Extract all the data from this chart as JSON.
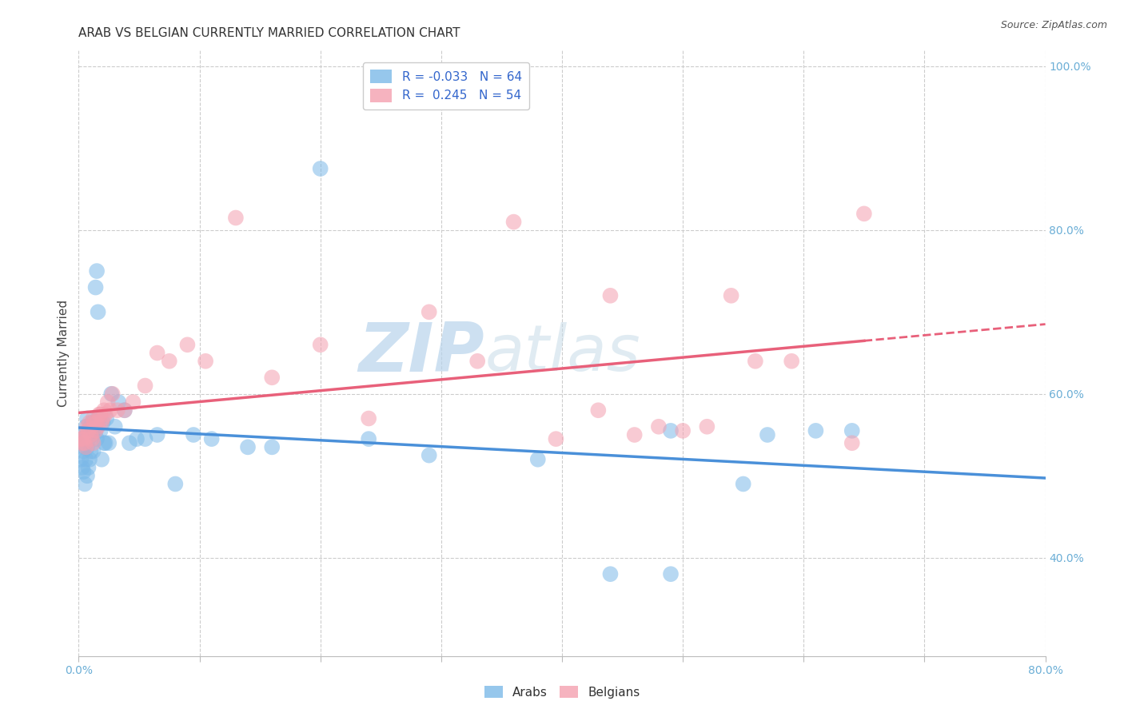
{
  "title": "ARAB VS BELGIAN CURRENTLY MARRIED CORRELATION CHART",
  "source": "Source: ZipAtlas.com",
  "ylabel": "Currently Married",
  "xlim": [
    0.0,
    0.8
  ],
  "ylim": [
    0.28,
    1.02
  ],
  "xtick_positions": [
    0.0,
    0.1,
    0.2,
    0.3,
    0.4,
    0.5,
    0.6,
    0.7,
    0.8
  ],
  "xticklabels": [
    "0.0%",
    "",
    "",
    "",
    "",
    "",
    "",
    "",
    "80.0%"
  ],
  "ytick_positions": [
    0.4,
    0.6,
    0.8,
    1.0
  ],
  "yticklabels": [
    "40.0%",
    "60.0%",
    "80.0%",
    "100.0%"
  ],
  "arab_color": "#7cb9e8",
  "belgian_color": "#f4a0b0",
  "arab_line_color": "#4a90d9",
  "belgian_line_color": "#e8607a",
  "arab_R": -0.033,
  "arab_N": 64,
  "belgian_R": 0.245,
  "belgian_N": 54,
  "watermark": "ZIPatlas",
  "background_color": "#ffffff",
  "grid_color": "#cccccc",
  "axis_color": "#6baed6",
  "arab_points_x": [
    0.001,
    0.002,
    0.002,
    0.003,
    0.003,
    0.004,
    0.004,
    0.005,
    0.005,
    0.006,
    0.006,
    0.007,
    0.007,
    0.007,
    0.008,
    0.008,
    0.009,
    0.009,
    0.01,
    0.01,
    0.01,
    0.011,
    0.011,
    0.012,
    0.012,
    0.013,
    0.014,
    0.014,
    0.015,
    0.015,
    0.016,
    0.016,
    0.017,
    0.018,
    0.019,
    0.02,
    0.021,
    0.022,
    0.023,
    0.025,
    0.027,
    0.03,
    0.033,
    0.038,
    0.042,
    0.048,
    0.055,
    0.065,
    0.08,
    0.095,
    0.11,
    0.14,
    0.16,
    0.2,
    0.24,
    0.29,
    0.38,
    0.44,
    0.49,
    0.49,
    0.55,
    0.57,
    0.61,
    0.64
  ],
  "arab_points_y": [
    0.54,
    0.545,
    0.52,
    0.55,
    0.51,
    0.53,
    0.505,
    0.535,
    0.49,
    0.52,
    0.56,
    0.5,
    0.57,
    0.535,
    0.545,
    0.51,
    0.555,
    0.52,
    0.545,
    0.56,
    0.53,
    0.55,
    0.565,
    0.555,
    0.53,
    0.56,
    0.555,
    0.73,
    0.545,
    0.75,
    0.57,
    0.7,
    0.57,
    0.555,
    0.52,
    0.565,
    0.54,
    0.54,
    0.57,
    0.54,
    0.6,
    0.56,
    0.59,
    0.58,
    0.54,
    0.545,
    0.545,
    0.55,
    0.49,
    0.55,
    0.545,
    0.535,
    0.535,
    0.875,
    0.545,
    0.525,
    0.52,
    0.38,
    0.555,
    0.38,
    0.49,
    0.55,
    0.555,
    0.555
  ],
  "belgian_points_x": [
    0.001,
    0.002,
    0.003,
    0.004,
    0.005,
    0.006,
    0.007,
    0.007,
    0.008,
    0.009,
    0.01,
    0.011,
    0.012,
    0.012,
    0.013,
    0.014,
    0.015,
    0.016,
    0.017,
    0.018,
    0.019,
    0.02,
    0.021,
    0.022,
    0.024,
    0.026,
    0.028,
    0.032,
    0.038,
    0.045,
    0.055,
    0.065,
    0.075,
    0.09,
    0.105,
    0.13,
    0.16,
    0.2,
    0.24,
    0.29,
    0.33,
    0.36,
    0.395,
    0.43,
    0.44,
    0.46,
    0.48,
    0.5,
    0.52,
    0.54,
    0.56,
    0.59,
    0.64,
    0.65
  ],
  "belgian_points_y": [
    0.545,
    0.545,
    0.54,
    0.545,
    0.54,
    0.535,
    0.56,
    0.555,
    0.555,
    0.565,
    0.55,
    0.545,
    0.54,
    0.57,
    0.565,
    0.555,
    0.565,
    0.56,
    0.575,
    0.575,
    0.565,
    0.57,
    0.58,
    0.575,
    0.59,
    0.58,
    0.6,
    0.58,
    0.58,
    0.59,
    0.61,
    0.65,
    0.64,
    0.66,
    0.64,
    0.815,
    0.62,
    0.66,
    0.57,
    0.7,
    0.64,
    0.81,
    0.545,
    0.58,
    0.72,
    0.55,
    0.56,
    0.555,
    0.56,
    0.72,
    0.64,
    0.64,
    0.54,
    0.82
  ],
  "legend_arab_label": "R = -0.033   N = 64",
  "legend_belgian_label": "R =  0.245   N = 54",
  "bottom_legend_arab": "Arabs",
  "bottom_legend_belgian": "Belgians"
}
